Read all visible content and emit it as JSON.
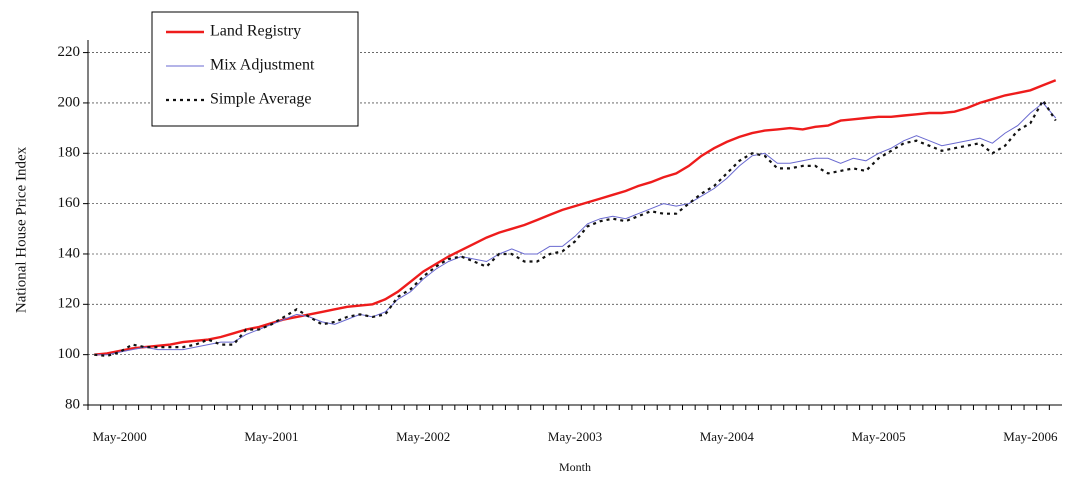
{
  "chart_data": {
    "type": "line",
    "y_label": "National House Price Index",
    "x_label": "Month",
    "categories": [
      null,
      null,
      "May-2000",
      null,
      null,
      null,
      null,
      null,
      null,
      null,
      null,
      null,
      null,
      null,
      "May-2001",
      null,
      null,
      null,
      null,
      null,
      null,
      null,
      null,
      null,
      null,
      null,
      "May-2002",
      null,
      null,
      null,
      null,
      null,
      null,
      null,
      null,
      null,
      null,
      null,
      "May-2003",
      null,
      null,
      null,
      null,
      null,
      null,
      null,
      null,
      null,
      null,
      null,
      "May-2004",
      null,
      null,
      null,
      null,
      null,
      null,
      null,
      null,
      null,
      null,
      null,
      "May-2005",
      null,
      null,
      null,
      null,
      null,
      null,
      null,
      null,
      null,
      null,
      null,
      "May-2006",
      null,
      null
    ],
    "series": [
      {
        "name": "Land Registry",
        "color": "#ee1c1c",
        "style": "solid",
        "values": [
          100,
          100.5,
          101.5,
          102.5,
          103,
          103.5,
          104,
          105,
          105.5,
          106,
          107,
          108.5,
          110,
          111,
          112.5,
          114,
          115,
          116,
          117,
          118,
          119,
          119.5,
          120,
          122,
          125,
          129,
          133,
          136,
          139,
          141.5,
          144,
          146.5,
          148.5,
          150,
          151.5,
          153.5,
          155.5,
          157.5,
          159,
          160.5,
          162,
          163.5,
          165,
          167,
          168.5,
          170.5,
          172,
          175,
          179,
          182,
          184.5,
          186.5,
          188,
          189,
          189.5,
          190,
          189.5,
          190.5,
          191,
          193,
          193.5,
          194,
          194.5,
          194.5,
          195,
          195.5,
          196,
          196,
          196.5,
          198,
          200,
          201.5,
          203,
          204,
          205,
          207,
          209
        ]
      },
      {
        "name": "Mix Adjustment",
        "color": "#6a6ad0",
        "style": "thin",
        "values": [
          100,
          100,
          101,
          102,
          103,
          102,
          102,
          102,
          103,
          104,
          105,
          105,
          108,
          110,
          112,
          114,
          116,
          115,
          113,
          112,
          114,
          116,
          115,
          117,
          122,
          125,
          130,
          134,
          137,
          139,
          138,
          137,
          140,
          142,
          140,
          140,
          143,
          143,
          147,
          152,
          154,
          155,
          154,
          156,
          158,
          160,
          159,
          160,
          163,
          166,
          170,
          175,
          179,
          180,
          176,
          176,
          177,
          178,
          178,
          176,
          178,
          177,
          180,
          182,
          185,
          187,
          185,
          183,
          184,
          185,
          186,
          184,
          188,
          191,
          196,
          200,
          194
        ]
      },
      {
        "name": "Simple Average",
        "color": "#111111",
        "style": "dotted",
        "values": [
          100,
          99.5,
          101,
          104,
          103,
          103,
          103,
          103,
          104,
          106,
          104,
          104,
          110,
          110,
          112,
          115,
          118,
          115,
          112,
          113,
          115,
          116,
          115,
          116,
          123,
          126,
          131,
          135,
          138,
          139,
          137,
          135,
          140,
          140,
          137,
          137,
          140,
          141,
          145,
          151,
          153,
          154,
          153,
          155,
          157,
          156,
          156,
          160,
          164,
          167,
          172,
          177,
          180,
          179,
          174,
          174,
          175,
          175,
          172,
          173,
          174,
          173,
          178,
          181,
          184,
          185,
          183,
          181,
          182,
          183,
          184,
          180,
          183,
          189,
          192,
          201,
          193
        ]
      }
    ],
    "ylim": [
      80,
      225
    ],
    "yticks": [
      80,
      100,
      120,
      140,
      160,
      180,
      200,
      220
    ],
    "grid": true,
    "legend": "upper left"
  }
}
